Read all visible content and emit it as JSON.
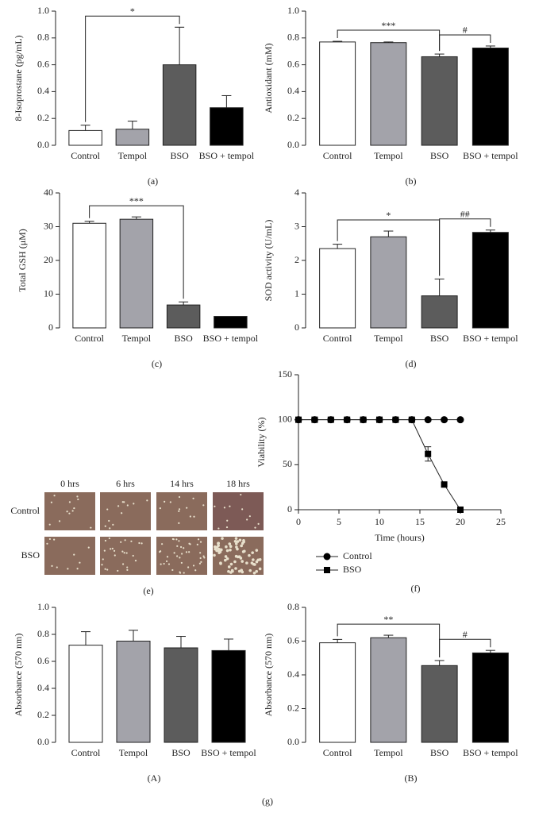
{
  "chart_data": [
    {
      "type": "bar",
      "y_label": "8-Isoprostane (pg/mL)",
      "caption": "(a)",
      "categories": [
        "Control",
        "Tempol",
        "BSO",
        "BSO + tempol"
      ],
      "values": [
        0.11,
        0.12,
        0.6,
        0.28
      ],
      "errors": [
        0.04,
        0.06,
        0.28,
        0.09
      ],
      "colors": [
        "#ffffff",
        "#a3a3aa",
        "#5c5c5c",
        "#000000"
      ],
      "ylim": [
        0,
        1
      ],
      "yticks": [
        {
          "value": 0,
          "label": "0.0"
        },
        0.2,
        0.4,
        0.6,
        0.8,
        {
          "value": 1,
          "label": "1.0"
        }
      ],
      "annotations": [
        {
          "text": "*",
          "between": [
            "Control",
            "BSO"
          ]
        }
      ]
    },
    {
      "type": "bar",
      "y_label": "Antioxidant (mM)",
      "caption": "(b)",
      "categories": [
        "Control",
        "Tempol",
        "BSO",
        "BSO + tempol"
      ],
      "values": [
        0.77,
        0.765,
        0.66,
        0.725
      ],
      "errors": [
        0.005,
        0.005,
        0.02,
        0.015
      ],
      "colors": [
        "#ffffff",
        "#a3a3aa",
        "#5c5c5c",
        "#000000"
      ],
      "ylim": [
        0,
        1
      ],
      "yticks": [
        {
          "value": 0,
          "label": "0.0"
        },
        0.2,
        0.4,
        0.6,
        0.8,
        {
          "value": 1,
          "label": "1.0"
        }
      ],
      "annotations": [
        {
          "text": "***",
          "between": [
            "Control",
            "BSO"
          ]
        },
        {
          "text": "#",
          "between": [
            "BSO",
            "BSO + tempol"
          ]
        }
      ]
    },
    {
      "type": "bar",
      "y_label": "Total GSH (μM)",
      "caption": "(c)",
      "categories": [
        "Control",
        "Tempol",
        "BSO",
        "BSO + tempol"
      ],
      "values": [
        31,
        32.2,
        6.8,
        3.4
      ],
      "errors": [
        0.6,
        0.7,
        0.9,
        0
      ],
      "colors": [
        "#ffffff",
        "#a3a3aa",
        "#5c5c5c",
        "#000000"
      ],
      "ylim": [
        0,
        40
      ],
      "yticks": [
        0,
        10,
        20,
        30,
        40
      ],
      "annotations": [
        {
          "text": "***",
          "between": [
            "Control",
            "BSO"
          ]
        }
      ]
    },
    {
      "type": "bar",
      "y_label": "SOD activity (U/mL)",
      "caption": "(d)",
      "categories": [
        "Control",
        "Tempol",
        "BSO",
        "BSO + tempol"
      ],
      "values": [
        2.35,
        2.7,
        0.95,
        2.83
      ],
      "errors": [
        0.13,
        0.17,
        0.5,
        0.07
      ],
      "colors": [
        "#ffffff",
        "#a3a3aa",
        "#5c5c5c",
        "#000000"
      ],
      "ylim": [
        0,
        4
      ],
      "yticks": [
        0,
        1,
        2,
        3,
        4
      ],
      "annotations": [
        {
          "text": "*",
          "between": [
            "Control",
            "BSO"
          ]
        },
        {
          "text": "##",
          "between": [
            "BSO",
            "BSO + tempol"
          ]
        }
      ]
    },
    {
      "type": "line",
      "y_label": "Viability (%)",
      "x_label": "Time (hours)",
      "caption": "(f)",
      "xlim": [
        0,
        25
      ],
      "xticks": [
        0,
        5,
        10,
        15,
        20,
        25
      ],
      "ylim": [
        0,
        150
      ],
      "yticks": [
        0,
        50,
        100,
        150
      ],
      "series": [
        {
          "name": "Control",
          "color": "#000000",
          "marker": "circle",
          "x": [
            0,
            2,
            4,
            6,
            8,
            10,
            12,
            14,
            16,
            18,
            20
          ],
          "values": [
            100,
            100,
            100,
            100,
            100,
            100,
            100,
            100,
            100,
            100,
            100
          ]
        },
        {
          "name": "BSO",
          "color": "#000000",
          "marker": "square",
          "x": [
            0,
            2,
            4,
            6,
            8,
            10,
            12,
            14,
            16,
            18,
            20
          ],
          "values": [
            100,
            100,
            100,
            100,
            100,
            100,
            100,
            100,
            62,
            28,
            0
          ],
          "errors": [
            null,
            null,
            null,
            null,
            null,
            null,
            null,
            null,
            8,
            null,
            null
          ]
        }
      ]
    },
    {
      "type": "bar",
      "y_label": "Absorbance (570 nm)",
      "caption": "(A)",
      "categories": [
        "Control",
        "Tempol",
        "BSO",
        "BSO + tempol"
      ],
      "values": [
        0.72,
        0.75,
        0.7,
        0.68
      ],
      "errors": [
        0.1,
        0.08,
        0.085,
        0.085
      ],
      "colors": [
        "#ffffff",
        "#a3a3aa",
        "#5c5c5c",
        "#000000"
      ],
      "ylim": [
        0,
        1
      ],
      "yticks": [
        {
          "value": 0,
          "label": "0.0"
        },
        0.2,
        0.4,
        0.6,
        0.8,
        {
          "value": 1,
          "label": "1.0"
        }
      ],
      "annotations": []
    },
    {
      "type": "bar",
      "y_label": "Absorbance (570 nm)",
      "caption": "(B)",
      "categories": [
        "Control",
        "Tempol",
        "BSO",
        "BSO + tempol"
      ],
      "values": [
        0.59,
        0.62,
        0.455,
        0.53
      ],
      "errors": [
        0.02,
        0.015,
        0.03,
        0.015
      ],
      "colors": [
        "#ffffff",
        "#a3a3aa",
        "#5c5c5c",
        "#000000"
      ],
      "ylim": [
        0,
        0.8
      ],
      "yticks": [
        {
          "value": 0,
          "label": "0.0"
        },
        0.2,
        0.4,
        0.6,
        0.8
      ],
      "annotations": [
        {
          "text": "**",
          "between": [
            "Control",
            "BSO"
          ]
        },
        {
          "text": "#",
          "between": [
            "BSO",
            "BSO + tempol"
          ]
        }
      ]
    }
  ],
  "micrographs": {
    "columns": [
      "0 hrs",
      "6 hrs",
      "14 hrs",
      "18 hrs"
    ],
    "rows": [
      "Control",
      "BSO"
    ],
    "caption": "(e)"
  },
  "group_caption": "(g)"
}
